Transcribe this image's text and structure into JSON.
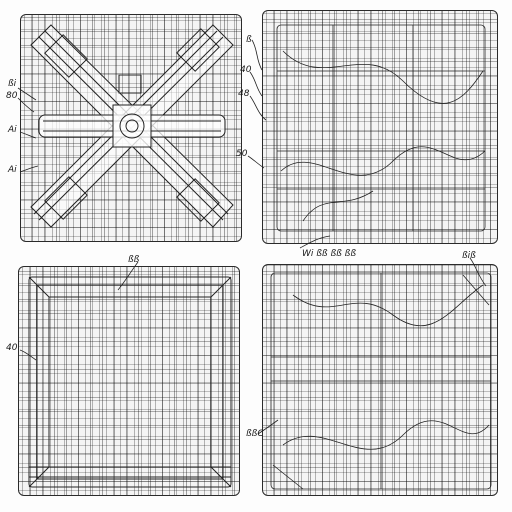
{
  "drawing": {
    "figures": [
      {
        "id": "top-left",
        "label": ""
      },
      {
        "id": "top-right",
        "label": ""
      },
      {
        "id": "bottom-left",
        "label": ""
      },
      {
        "id": "bottom-right",
        "label": ""
      }
    ],
    "callouts": {
      "tl_left_1": "ßi",
      "tl_left_2": "80",
      "tl_left_3": "Ai",
      "tl_left_4": "Ai",
      "tr_left_1": "ß",
      "tr_left_2": "40",
      "tr_left_3": "48",
      "tr_left_4": "50",
      "tr_bottom": "Wi ßß ßß ßß",
      "bl_top": "ßß",
      "bl_left_1": "40",
      "br_top_right": "ßiß",
      "br_left": "ßßC"
    },
    "line_color": "#222222",
    "paper_color": "#fdfdfd"
  }
}
